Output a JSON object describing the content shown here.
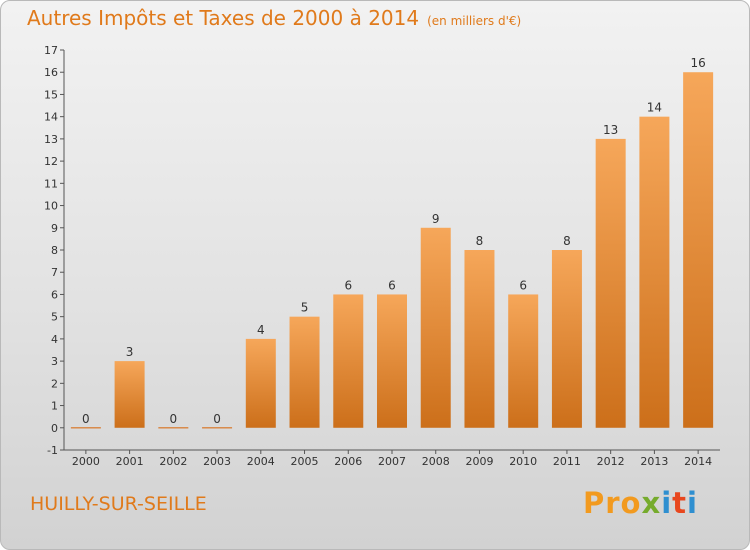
{
  "title": "Autres Impôts et Taxes de 2000 à 2014",
  "subtitle": "(en milliers d'€)",
  "commune": "HUILLY-SUR-SEILLE",
  "logo": {
    "p1": "Pro",
    "p2": "x",
    "p3": "i",
    "p4": "t",
    "p5": "i"
  },
  "colors": {
    "bar_top": "#f6a75a",
    "bar_bottom": "#cc6f1a",
    "title": "#e07a1b"
  },
  "chart_data": {
    "type": "bar",
    "categories": [
      "2000",
      "2001",
      "2002",
      "2003",
      "2004",
      "2005",
      "2006",
      "2007",
      "2008",
      "2009",
      "2010",
      "2011",
      "2012",
      "2013",
      "2014"
    ],
    "values": [
      0,
      3,
      0,
      0,
      4,
      5,
      6,
      6,
      9,
      8,
      6,
      8,
      13,
      14,
      16
    ],
    "yticks": [
      -1,
      0,
      1,
      2,
      3,
      4,
      5,
      6,
      7,
      8,
      9,
      10,
      11,
      12,
      13,
      14,
      15,
      16,
      17
    ],
    "ylim": [
      -1,
      17
    ],
    "grid": false,
    "legend": "none"
  }
}
